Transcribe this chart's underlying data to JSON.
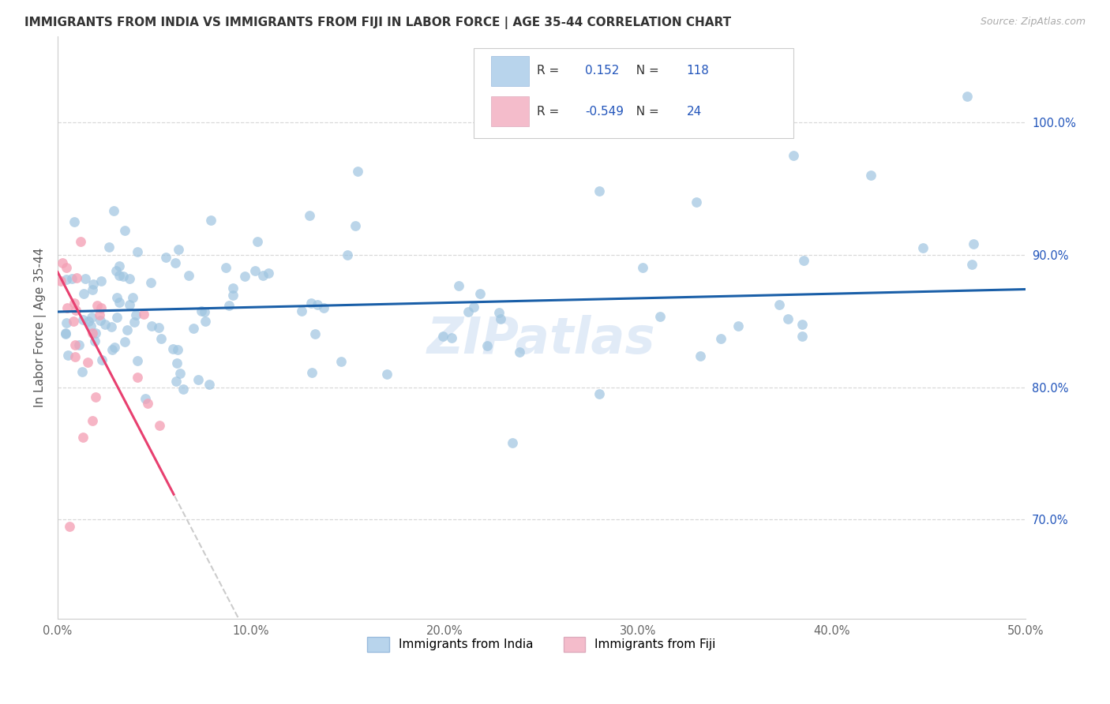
{
  "title": "IMMIGRANTS FROM INDIA VS IMMIGRANTS FROM FIJI IN LABOR FORCE | AGE 35-44 CORRELATION CHART",
  "source": "Source: ZipAtlas.com",
  "ylabel": "In Labor Force | Age 35-44",
  "xlim": [
    0.0,
    0.5
  ],
  "ylim": [
    0.625,
    1.065
  ],
  "xtick_labels": [
    "0.0%",
    "10.0%",
    "20.0%",
    "30.0%",
    "40.0%",
    "50.0%"
  ],
  "xtick_vals": [
    0.0,
    0.1,
    0.2,
    0.3,
    0.4,
    0.5
  ],
  "ytick_labels_right": [
    "70.0%",
    "80.0%",
    "90.0%",
    "100.0%"
  ],
  "ytick_vals": [
    0.7,
    0.8,
    0.9,
    1.0
  ],
  "india_R": 0.152,
  "india_N": 118,
  "fiji_R": -0.549,
  "fiji_N": 24,
  "india_color": "#9ec4e0",
  "fiji_color": "#f4a0b5",
  "india_line_color": "#1a5fa8",
  "fiji_line_color": "#e84070",
  "fiji_dash_color": "#cccccc",
  "watermark": "ZIPatlas",
  "legend_color_india": "#b8d4ec",
  "legend_color_fiji": "#f4bccb",
  "legend_text_color": "#2255bb",
  "legend_label_color": "#333333"
}
